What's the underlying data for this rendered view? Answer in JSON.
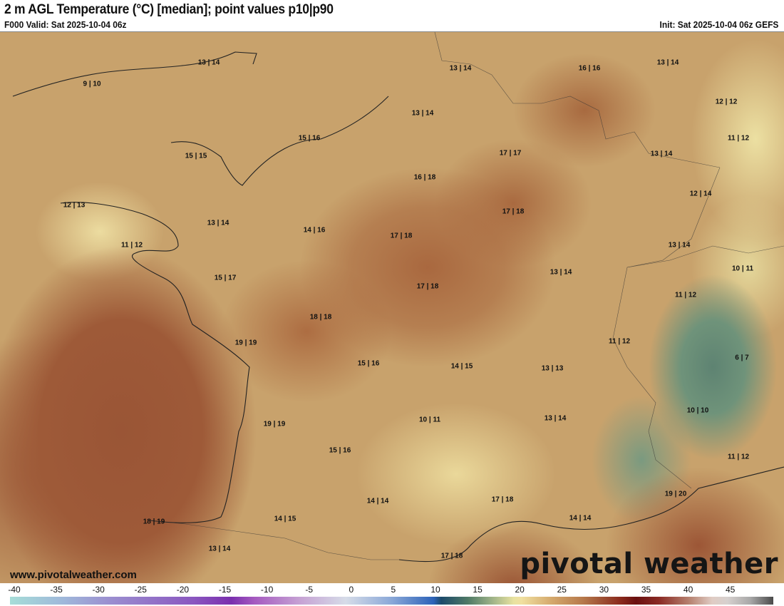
{
  "header": {
    "title": "2 m AGL Temperature (°C) [median]; point values p10|p90",
    "valid": "F000 Valid: Sat 2025-10-04 06z",
    "init": "Init: Sat 2025-10-04 06z GEFS"
  },
  "point_values": [
    "13 | 14",
    "9 | 10",
    "13 | 14",
    "16 | 16",
    "13 | 14",
    "13 | 14",
    "12 | 12",
    "15 | 16",
    "11 | 12",
    "15 | 15",
    "17 | 17",
    "13 | 14",
    "16 | 18",
    "12 | 14",
    "12 | 13",
    "17 | 18",
    "13 | 14",
    "14 | 16",
    "17 | 18",
    "11 | 12",
    "13 | 14",
    "10 | 11",
    "15 | 17",
    "13 | 14",
    "17 | 18",
    "11 | 12",
    "18 | 18",
    "11 | 12",
    "19 | 19",
    "6 | 7",
    "15 | 16",
    "14 | 15",
    "13 | 13",
    "10 | 10",
    "10 | 11",
    "13 | 14",
    "19 | 19",
    "15 | 16",
    "11 | 12",
    "19 | 20",
    "17 | 18",
    "14 | 14",
    "14 | 14",
    "18 | 19",
    "14 | 15",
    "13 | 14",
    "17 | 18"
  ],
  "footer": {
    "website": "www.pivotalweather.com",
    "logo": "pivotal weather"
  },
  "colorbar": {
    "unit": "°C",
    "ticks": [
      "-40",
      "-35",
      "-30",
      "-25",
      "-20",
      "-15",
      "-10",
      "-5",
      "0",
      "5",
      "10",
      "15",
      "20",
      "25",
      "30",
      "35",
      "40",
      "45"
    ],
    "range": [
      -40,
      50
    ]
  }
}
